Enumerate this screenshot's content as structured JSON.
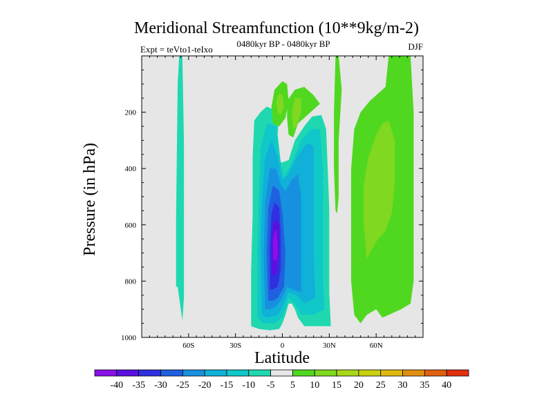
{
  "chart_data": {
    "type": "contour",
    "title": "Meridional Streamfunction (10**9kg/m-2)",
    "subtitle_center": "0480kyr BP - 0480kyr BP",
    "subtitle_left": "Expt = teVto1-teIxo",
    "subtitle_right": "DJF",
    "xlabel": "Latitude",
    "ylabel": "Pressure (in hPa)",
    "xlim": [
      -90,
      90
    ],
    "ylim": [
      1000,
      0
    ],
    "x_ticks": [
      {
        "value": -60,
        "label": "60S"
      },
      {
        "value": -30,
        "label": "30S"
      },
      {
        "value": 0,
        "label": "0"
      },
      {
        "value": 30,
        "label": "30N"
      },
      {
        "value": 60,
        "label": "60N"
      }
    ],
    "y_ticks": [
      {
        "value": 200,
        "label": "200"
      },
      {
        "value": 400,
        "label": "400"
      },
      {
        "value": 600,
        "label": "600"
      },
      {
        "value": 800,
        "label": "800"
      },
      {
        "value": 1000,
        "label": "1000"
      }
    ],
    "background_color": "#e6e6e6",
    "colorbar": {
      "levels": [
        -40,
        -35,
        -30,
        -25,
        -20,
        -15,
        -10,
        -5,
        5,
        10,
        15,
        20,
        25,
        30,
        35,
        40
      ],
      "labels": [
        "-40",
        "-35",
        "-30",
        "-25",
        "-20",
        "-15",
        "-10",
        "-5",
        "5",
        "10",
        "15",
        "20",
        "25",
        "30",
        "35",
        "40"
      ],
      "colors": [
        "#8a10e8",
        "#5a10e0",
        "#3030e0",
        "#2060e0",
        "#1890e0",
        "#10b0d8",
        "#10c8c8",
        "#20d8b0",
        "#e6e6e6",
        "#50d820",
        "#80d820",
        "#a8d818",
        "#c8d010",
        "#e0b810",
        "#e09010",
        "#e06010",
        "#e03010"
      ]
    },
    "regions": [
      {
        "name": "south-polar-strip",
        "level": -5,
        "points": [
          [
            -68,
            820
          ],
          [
            -68,
            580
          ],
          [
            -67,
            100
          ],
          [
            -66,
            0
          ],
          [
            -64,
            0
          ],
          [
            -63,
            300
          ],
          [
            -63,
            600
          ],
          [
            -63,
            860
          ],
          [
            -64,
            940
          ],
          [
            -65,
            900
          ],
          [
            -67,
            820
          ]
        ]
      },
      {
        "name": "southern-cell-outer",
        "level": -5,
        "points": [
          [
            -20,
            960
          ],
          [
            -20,
            760
          ],
          [
            -19,
            560
          ],
          [
            -19,
            360
          ],
          [
            -18,
            230
          ],
          [
            -14,
            200
          ],
          [
            -10,
            180
          ],
          [
            -2,
            200
          ],
          [
            -3,
            280
          ],
          [
            -1,
            380
          ],
          [
            4,
            370
          ],
          [
            8,
            300
          ],
          [
            14,
            250
          ],
          [
            19,
            215
          ],
          [
            25,
            210
          ],
          [
            28,
            260
          ],
          [
            29,
            400
          ],
          [
            30,
            540
          ],
          [
            30,
            680
          ],
          [
            30,
            840
          ],
          [
            31,
            960
          ],
          [
            24,
            960
          ],
          [
            14,
            960
          ],
          [
            10,
            930
          ],
          [
            8,
            900
          ],
          [
            6,
            880
          ],
          [
            4,
            880
          ],
          [
            2,
            920
          ],
          [
            0,
            950
          ],
          [
            -2,
            970
          ],
          [
            -8,
            975
          ],
          [
            -15,
            970
          ]
        ]
      },
      {
        "name": "southern-cell-10",
        "level": -10,
        "points": [
          [
            -16,
            930
          ],
          [
            -16,
            700
          ],
          [
            -15,
            500
          ],
          [
            -14,
            330
          ],
          [
            -10,
            240
          ],
          [
            -4,
            250
          ],
          [
            -2,
            350
          ],
          [
            1,
            430
          ],
          [
            6,
            380
          ],
          [
            12,
            300
          ],
          [
            18,
            260
          ],
          [
            24,
            260
          ],
          [
            26,
            400
          ],
          [
            26,
            600
          ],
          [
            26,
            800
          ],
          [
            27,
            900
          ],
          [
            20,
            920
          ],
          [
            12,
            920
          ],
          [
            8,
            880
          ],
          [
            4,
            860
          ],
          [
            2,
            900
          ],
          [
            0,
            930
          ],
          [
            -5,
            950
          ],
          [
            -12,
            950
          ]
        ]
      },
      {
        "name": "southern-cell-15",
        "level": -15,
        "points": [
          [
            -13,
            920
          ],
          [
            -14,
            700
          ],
          [
            -13,
            500
          ],
          [
            -11,
            360
          ],
          [
            -7,
            300
          ],
          [
            -3,
            360
          ],
          [
            0,
            440
          ],
          [
            4,
            420
          ],
          [
            9,
            360
          ],
          [
            16,
            310
          ],
          [
            20,
            320
          ],
          [
            20,
            500
          ],
          [
            20,
            700
          ],
          [
            21,
            860
          ],
          [
            14,
            880
          ],
          [
            9,
            850
          ],
          [
            4,
            840
          ],
          [
            1,
            880
          ],
          [
            -3,
            920
          ],
          [
            -9,
            930
          ]
        ]
      },
      {
        "name": "southern-cell-20",
        "level": -20,
        "points": [
          [
            -11,
            900
          ],
          [
            -12,
            700
          ],
          [
            -11,
            520
          ],
          [
            -8,
            400
          ],
          [
            -4,
            400
          ],
          [
            -1,
            460
          ],
          [
            2,
            480
          ],
          [
            6,
            440
          ],
          [
            10,
            420
          ],
          [
            12,
            500
          ],
          [
            12,
            700
          ],
          [
            12,
            840
          ],
          [
            7,
            830
          ],
          [
            3,
            820
          ],
          [
            0,
            860
          ],
          [
            -4,
            890
          ],
          [
            -8,
            900
          ]
        ]
      },
      {
        "name": "southern-cell-25",
        "level": -25,
        "points": [
          [
            -9,
            870
          ],
          [
            -10,
            700
          ],
          [
            -9,
            540
          ],
          [
            -6,
            460
          ],
          [
            -2,
            480
          ],
          [
            0,
            560
          ],
          [
            2,
            700
          ],
          [
            1,
            820
          ],
          [
            -3,
            860
          ],
          [
            -6,
            870
          ]
        ]
      },
      {
        "name": "southern-cell-30",
        "level": -30,
        "points": [
          [
            -8,
            830
          ],
          [
            -8,
            680
          ],
          [
            -7,
            560
          ],
          [
            -5,
            520
          ],
          [
            -2,
            540
          ],
          [
            -1,
            640
          ],
          [
            -1,
            760
          ],
          [
            -3,
            820
          ],
          [
            -6,
            830
          ]
        ]
      },
      {
        "name": "southern-cell-35",
        "level": -35,
        "points": [
          [
            -7,
            780
          ],
          [
            -7,
            660
          ],
          [
            -6,
            600
          ],
          [
            -4,
            580
          ],
          [
            -2,
            600
          ],
          [
            -2,
            700
          ],
          [
            -3,
            760
          ],
          [
            -5,
            780
          ]
        ]
      },
      {
        "name": "southern-cell-40",
        "level": -40,
        "points": [
          [
            -6,
            720
          ],
          [
            -6,
            650
          ],
          [
            -5,
            620
          ],
          [
            -4,
            620
          ],
          [
            -3,
            660
          ],
          [
            -3,
            710
          ],
          [
            -4,
            730
          ]
        ]
      },
      {
        "name": "upper-left-blob",
        "level": 5,
        "points": [
          [
            -6,
            240
          ],
          [
            -7,
            180
          ],
          [
            -5,
            120
          ],
          [
            0,
            90
          ],
          [
            3,
            100
          ],
          [
            4,
            160
          ],
          [
            2,
            220
          ],
          [
            -2,
            250
          ]
        ]
      },
      {
        "name": "upper-left-blob-inner",
        "level": 10,
        "points": [
          [
            -3,
            200
          ],
          [
            -4,
            160
          ],
          [
            -2,
            130
          ],
          [
            0,
            140
          ],
          [
            1,
            180
          ],
          [
            -1,
            210
          ]
        ]
      },
      {
        "name": "upper-right-blob",
        "level": 5,
        "points": [
          [
            4,
            280
          ],
          [
            3,
            220
          ],
          [
            3,
            160
          ],
          [
            8,
            120
          ],
          [
            14,
            110
          ],
          [
            20,
            140
          ],
          [
            24,
            170
          ],
          [
            16,
            210
          ],
          [
            10,
            240
          ],
          [
            7,
            290
          ]
        ]
      },
      {
        "name": "upper-right-blob-inner",
        "level": 10,
        "points": [
          [
            7,
            260
          ],
          [
            6,
            200
          ],
          [
            8,
            150
          ],
          [
            12,
            150
          ],
          [
            12,
            200
          ],
          [
            9,
            250
          ]
        ]
      },
      {
        "name": "tropical-strip",
        "level": 5,
        "points": [
          [
            34,
            550
          ],
          [
            33,
            400
          ],
          [
            33,
            200
          ],
          [
            34,
            0
          ],
          [
            36,
            0
          ],
          [
            38,
            120
          ],
          [
            36,
            300
          ],
          [
            36,
            500
          ],
          [
            35,
            560
          ]
        ]
      },
      {
        "name": "northern-cell-outer",
        "level": 5,
        "points": [
          [
            46,
            920
          ],
          [
            44,
            800
          ],
          [
            44,
            600
          ],
          [
            44,
            400
          ],
          [
            46,
            260
          ],
          [
            50,
            200
          ],
          [
            56,
            160
          ],
          [
            62,
            130
          ],
          [
            66,
            110
          ],
          [
            68,
            0
          ],
          [
            82,
            0
          ],
          [
            84,
            200
          ],
          [
            84,
            400
          ],
          [
            84,
            600
          ],
          [
            84,
            800
          ],
          [
            82,
            880
          ],
          [
            76,
            900
          ],
          [
            64,
            930
          ],
          [
            60,
            900
          ],
          [
            54,
            920
          ],
          [
            50,
            950
          ]
        ]
      },
      {
        "name": "northern-cell-10",
        "level": 10,
        "points": [
          [
            54,
            720
          ],
          [
            52,
            600
          ],
          [
            52,
            460
          ],
          [
            55,
            360
          ],
          [
            60,
            280
          ],
          [
            64,
            240
          ],
          [
            68,
            230
          ],
          [
            72,
            300
          ],
          [
            72,
            450
          ],
          [
            70,
            560
          ],
          [
            66,
            620
          ],
          [
            60,
            660
          ],
          [
            56,
            700
          ]
        ]
      }
    ]
  }
}
